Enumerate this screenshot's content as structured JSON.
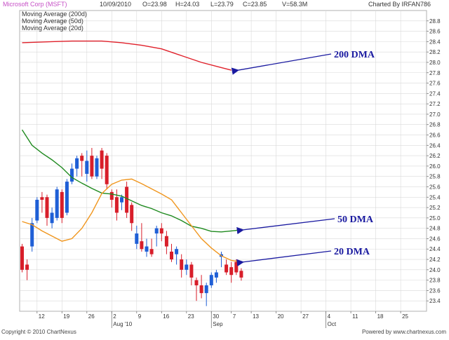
{
  "header": {
    "symbol": "Microsoft Corp (MSFT)",
    "date": "10/09/2010",
    "open": "O=23.98",
    "high": "H=24.03",
    "low": "L=23.79",
    "close": "C=23.85",
    "volume": "V=58.3M",
    "charted_by": "Charted By IRFAN786"
  },
  "footer": {
    "copyright": "Copyright © 2010 ChartNexus",
    "powered": "Powered by www.chartnexus.com"
  },
  "colors": {
    "ma200": "#e0202a",
    "ma50": "#1f8a1f",
    "ma20": "#f0961e",
    "up": "#1f5fd6",
    "down": "#d81e2a",
    "arrow": "#1a1aa0",
    "grid": "#d9d9d9"
  },
  "chart_data": {
    "type": "candlestick",
    "ylim": [
      23.2,
      29.0
    ],
    "yticks": [
      "23.4",
      "23.6",
      "23.8",
      "24.0",
      "24.2",
      "24.4",
      "24.6",
      "24.8",
      "25.0",
      "25.2",
      "25.4",
      "25.6",
      "25.8",
      "26.0",
      "26.2",
      "26.4",
      "26.6",
      "26.8",
      "27.0",
      "27.2",
      "27.4",
      "27.6",
      "27.8",
      "28.0",
      "28.2",
      "28.4",
      "28.6",
      "28.8"
    ],
    "xticks": [
      {
        "label": "12",
        "day": 3
      },
      {
        "label": "19",
        "day": 8
      },
      {
        "label": "26",
        "day": 13
      },
      {
        "label": "2",
        "day": 18
      },
      {
        "label": "9",
        "day": 23
      },
      {
        "label": "16",
        "day": 28
      },
      {
        "label": "23",
        "day": 33
      },
      {
        "label": "30",
        "day": 38
      },
      {
        "label": "7",
        "day": 42
      },
      {
        "label": "13",
        "day": 46
      },
      {
        "label": "20",
        "day": 51
      },
      {
        "label": "27",
        "day": 56
      },
      {
        "label": "4",
        "day": 61
      },
      {
        "label": "11",
        "day": 66
      },
      {
        "label": "18",
        "day": 71
      },
      {
        "label": "25",
        "day": 76
      }
    ],
    "month_labels": [
      {
        "label": "Aug '10",
        "day": 18
      },
      {
        "label": "Sep",
        "day": 38
      },
      {
        "label": "Oct",
        "day": 61
      }
    ],
    "x_range": [
      0,
      79
    ],
    "legend": [
      {
        "name": "Moving Average (200d)",
        "color_key": "ma200"
      },
      {
        "name": "Moving Average (50d)",
        "color_key": "ma50"
      },
      {
        "name": "Moving Average (20d)",
        "color_key": "ma20"
      }
    ],
    "candles": [
      [
        0,
        24.45,
        24.0,
        24.5,
        23.95
      ],
      [
        1,
        24.1,
        24.0,
        24.2,
        23.8
      ],
      [
        2,
        24.45,
        24.9,
        25.0,
        24.35
      ],
      [
        3,
        24.95,
        25.35,
        25.4,
        24.9
      ],
      [
        4,
        25.4,
        25.35,
        25.5,
        25.1
      ],
      [
        5,
        25.4,
        25.0,
        25.45,
        24.85
      ],
      [
        6,
        24.9,
        25.1,
        25.2,
        24.8
      ],
      [
        7,
        25.0,
        25.55,
        25.6,
        24.95
      ],
      [
        8,
        25.5,
        25.0,
        25.55,
        24.9
      ],
      [
        9,
        25.1,
        25.7,
        25.75,
        25.05
      ],
      [
        10,
        25.7,
        25.95,
        26.05,
        25.65
      ],
      [
        11,
        25.95,
        26.15,
        26.2,
        25.8
      ],
      [
        12,
        26.2,
        26.1,
        26.25,
        25.8
      ],
      [
        13,
        25.85,
        26.1,
        26.3,
        25.7
      ],
      [
        14,
        26.2,
        25.8,
        26.35,
        25.75
      ],
      [
        15,
        25.8,
        26.15,
        26.2,
        25.75
      ],
      [
        16,
        26.3,
        25.95,
        26.35,
        25.75
      ],
      [
        17,
        26.2,
        25.65,
        26.25,
        25.55
      ],
      [
        18,
        25.5,
        25.35,
        25.55,
        25.2
      ],
      [
        19,
        25.4,
        25.1,
        25.55,
        24.95
      ],
      [
        20,
        25.3,
        25.4,
        25.45,
        25.15
      ],
      [
        21,
        25.6,
        25.1,
        25.7,
        25.0
      ],
      [
        22,
        25.25,
        24.9,
        25.3,
        24.75
      ],
      [
        23,
        24.5,
        24.7,
        24.85,
        24.4
      ],
      [
        24,
        24.55,
        24.4,
        24.9,
        24.35
      ],
      [
        25,
        24.35,
        24.45,
        24.6,
        24.25
      ],
      [
        26,
        24.4,
        24.3,
        24.6,
        24.25
      ],
      [
        27,
        24.7,
        24.8,
        24.85,
        24.45
      ],
      [
        28,
        24.8,
        24.7,
        24.9,
        24.55
      ],
      [
        29,
        24.65,
        24.45,
        24.75,
        24.3
      ],
      [
        30,
        24.35,
        24.2,
        24.5,
        24.15
      ],
      [
        31,
        24.3,
        24.4,
        24.45,
        24.1
      ],
      [
        32,
        24.2,
        24.0,
        24.3,
        23.85
      ],
      [
        33,
        24.0,
        24.1,
        24.2,
        23.9
      ],
      [
        34,
        24.1,
        23.85,
        24.15,
        23.7
      ],
      [
        35,
        23.8,
        23.7,
        23.85,
        23.4
      ],
      [
        36,
        23.7,
        23.55,
        23.9,
        23.45
      ],
      [
        37,
        23.55,
        23.7,
        23.75,
        23.3
      ],
      [
        38,
        23.7,
        23.9,
        23.95,
        23.65
      ],
      [
        39,
        23.85,
        23.95,
        24.0,
        23.75
      ],
      [
        40,
        24.25,
        24.3,
        24.35,
        24.05
      ],
      [
        41,
        24.1,
        23.95,
        24.2,
        23.9
      ],
      [
        42,
        24.05,
        23.9,
        24.15,
        23.75
      ],
      [
        43,
        24.15,
        23.95,
        24.2,
        23.9
      ],
      [
        44,
        23.98,
        23.85,
        24.03,
        23.79
      ]
    ],
    "series": [
      {
        "name": "Moving Average (200d)",
        "color_key": "ma200",
        "points": [
          [
            0,
            28.38
          ],
          [
            6,
            28.4
          ],
          [
            10,
            28.41
          ],
          [
            16,
            28.41
          ],
          [
            20,
            28.38
          ],
          [
            24,
            28.33
          ],
          [
            28,
            28.26
          ],
          [
            32,
            28.13
          ],
          [
            36,
            28.0
          ],
          [
            40,
            27.9
          ],
          [
            42,
            27.85
          ]
        ]
      },
      {
        "name": "Moving Average (50d)",
        "color_key": "ma50",
        "points": [
          [
            0,
            26.7
          ],
          [
            2,
            26.4
          ],
          [
            4,
            26.25
          ],
          [
            6,
            26.12
          ],
          [
            8,
            25.97
          ],
          [
            10,
            25.78
          ],
          [
            12,
            25.67
          ],
          [
            14,
            25.57
          ],
          [
            16,
            25.48
          ],
          [
            18,
            25.46
          ],
          [
            20,
            25.42
          ],
          [
            22,
            25.33
          ],
          [
            24,
            25.24
          ],
          [
            26,
            25.18
          ],
          [
            28,
            25.1
          ],
          [
            30,
            25.04
          ],
          [
            32,
            24.95
          ],
          [
            34,
            24.84
          ],
          [
            36,
            24.8
          ],
          [
            38,
            24.74
          ],
          [
            40,
            24.73
          ],
          [
            42,
            24.75
          ],
          [
            44,
            24.77
          ]
        ]
      },
      {
        "name": "Moving Average (20d)",
        "color_key": "ma20",
        "points": [
          [
            0,
            24.93
          ],
          [
            2,
            24.87
          ],
          [
            4,
            24.75
          ],
          [
            6,
            24.65
          ],
          [
            8,
            24.55
          ],
          [
            10,
            24.6
          ],
          [
            12,
            24.8
          ],
          [
            14,
            25.1
          ],
          [
            16,
            25.47
          ],
          [
            18,
            25.65
          ],
          [
            20,
            25.73
          ],
          [
            22,
            25.75
          ],
          [
            24,
            25.66
          ],
          [
            26,
            25.56
          ],
          [
            28,
            25.46
          ],
          [
            30,
            25.35
          ],
          [
            32,
            25.1
          ],
          [
            34,
            24.85
          ],
          [
            36,
            24.6
          ],
          [
            38,
            24.42
          ],
          [
            40,
            24.27
          ],
          [
            42,
            24.18
          ],
          [
            44,
            24.15
          ]
        ]
      }
    ],
    "annotations": [
      {
        "text": "200 DMA",
        "target_day": 42,
        "target_value": 27.85
      },
      {
        "text": "50 DMA",
        "target_day": 43,
        "target_value": 24.77
      },
      {
        "text": "20 DMA",
        "target_day": 43,
        "target_value": 24.15
      }
    ]
  }
}
